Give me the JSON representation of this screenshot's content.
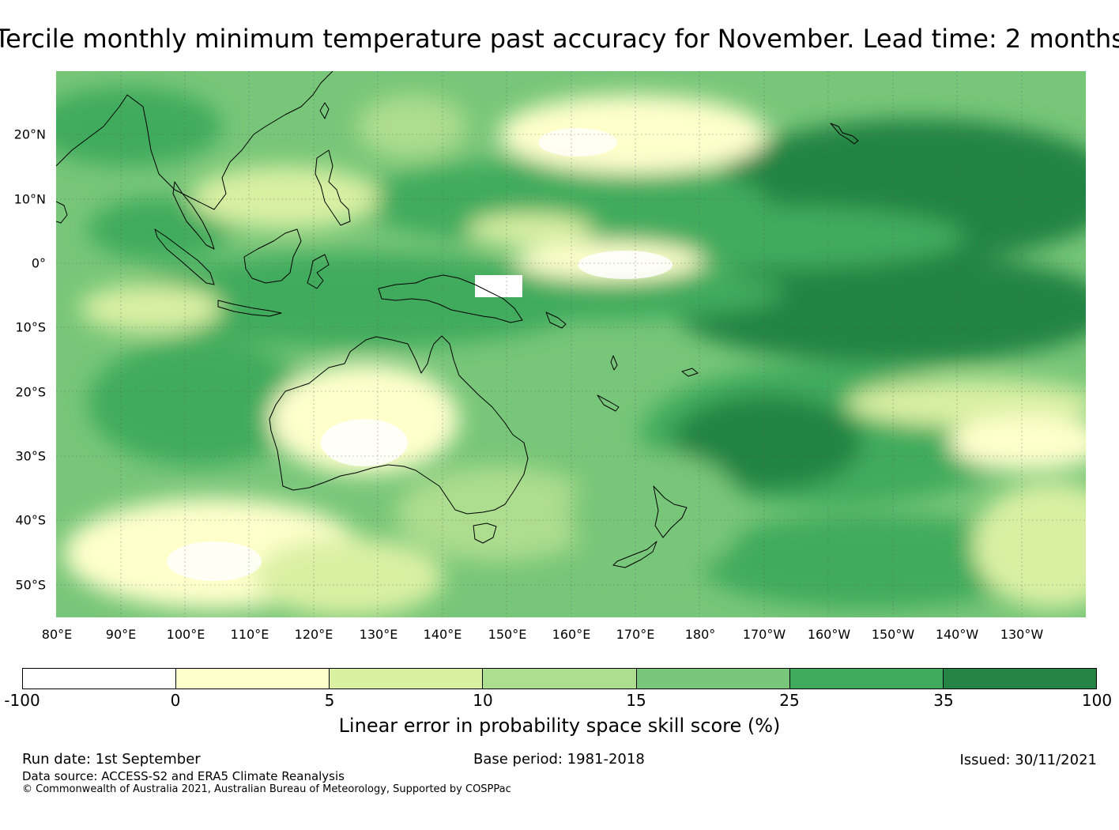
{
  "title": "Tercile monthly minimum temperature past accuracy for November. Lead time: 2 months",
  "map": {
    "lat_labels": [
      "20°N",
      "10°N",
      "0°",
      "10°S",
      "20°S",
      "30°S",
      "40°S",
      "50°S"
    ],
    "lon_labels": [
      "80°E",
      "90°E",
      "100°E",
      "110°E",
      "120°E",
      "130°E",
      "140°E",
      "150°E",
      "160°E",
      "170°E",
      "180°",
      "170°W",
      "160°W",
      "150°W",
      "140°W",
      "130°W"
    ],
    "background_color": "#74c476",
    "coastline_color": "#000000"
  },
  "legend": {
    "ticks": [
      "-100",
      "0",
      "5",
      "10",
      "15",
      "25",
      "35",
      "100"
    ],
    "colors": [
      "#ffffff",
      "#ffffcc",
      "#d9f0a3",
      "#addd8e",
      "#78c679",
      "#41ab5d",
      "#238443"
    ],
    "label": "Linear error in probability space skill score (%)"
  },
  "footer": {
    "run_date": "Run date: 1st September",
    "base_period": "Base period: 1981-2018",
    "issued": "Issued: 30/11/2021",
    "data_source": "Data source: ACCESS-S2 and ERA5 Climate Reanalysis",
    "copyright": "© Commonwealth of Australia 2021, Australian Bureau of Meteorology, Supported by COSPPac"
  }
}
